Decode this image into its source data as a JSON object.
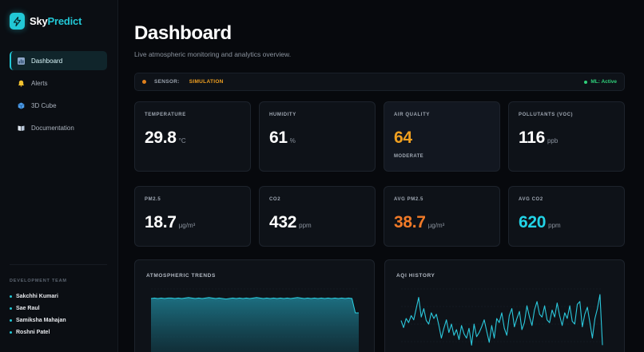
{
  "brand": {
    "name_a": "Sky",
    "name_b": "Predict",
    "logo_icon": "lightning-icon",
    "accent": "#22c8d6"
  },
  "sidebar": {
    "items": [
      {
        "label": "Dashboard",
        "icon": "chart-icon",
        "active": true
      },
      {
        "label": "Alerts",
        "icon": "bell-icon",
        "active": false
      },
      {
        "label": "3D Cube",
        "icon": "cube-icon",
        "active": false
      },
      {
        "label": "Documentation",
        "icon": "book-icon",
        "active": false
      }
    ],
    "team": {
      "title": "DEVELOPMENT TEAM",
      "members": [
        "Sakchhi Kumari",
        "Sae Raul",
        "Samiksha Mahajan",
        "Roshni Patel"
      ]
    }
  },
  "header": {
    "title": "Dashboard",
    "subtitle": "Live atmospheric monitoring and analytics overview."
  },
  "sensor": {
    "label": "SENSOR:",
    "value": "SIMULATION",
    "ml_status": "ML: Active"
  },
  "metrics": [
    {
      "label": "TEMPERATURE",
      "value": "29.8",
      "unit": "°C",
      "note": "",
      "color": "#ffffff"
    },
    {
      "label": "HUMIDITY",
      "value": "61",
      "unit": "%",
      "note": "",
      "color": "#ffffff"
    },
    {
      "label": "AIR QUALITY",
      "value": "64",
      "unit": "",
      "note": "MODERATE",
      "color": "#f0a020"
    },
    {
      "label": "POLLUTANTS (VOC)",
      "value": "116",
      "unit": "ppb",
      "note": "",
      "color": "#ffffff"
    },
    {
      "label": "PM2.5",
      "value": "18.7",
      "unit": "µg/m³",
      "note": "",
      "color": "#ffffff"
    },
    {
      "label": "CO2",
      "value": "432",
      "unit": "ppm",
      "note": "",
      "color": "#ffffff"
    },
    {
      "label": "AVG PM2.5",
      "value": "38.7",
      "unit": "µg/m³",
      "note": "",
      "color": "#f07a28"
    },
    {
      "label": "AVG CO2",
      "value": "620",
      "unit": "ppm",
      "note": "",
      "color": "#22d3e6"
    }
  ],
  "panels": {
    "trends_title": "ATMOSPHERIC TRENDS",
    "aqi_title": "AQI HISTORY"
  },
  "chart_data": [
    {
      "type": "area",
      "title": "ATMOSPHERIC TRENDS",
      "xlabel": "",
      "ylabel": "",
      "ylim": [
        0,
        100
      ],
      "grid": true,
      "series": [
        {
          "values": [
            80,
            81,
            80,
            81,
            80,
            81,
            81,
            80,
            81,
            80,
            81,
            82,
            81,
            80,
            81,
            80,
            81,
            82,
            81,
            80,
            81,
            80,
            79,
            80,
            81,
            80,
            81,
            80,
            81,
            80,
            81,
            82,
            81,
            80,
            81,
            80,
            81,
            80,
            81,
            80,
            81,
            80,
            81,
            82,
            81,
            80,
            81,
            80,
            81,
            80,
            81,
            80,
            81,
            80,
            81,
            80,
            81,
            80,
            81,
            80,
            50,
            50
          ]
        }
      ]
    },
    {
      "type": "line",
      "title": "AQI HISTORY",
      "xlabel": "",
      "ylabel": "",
      "ylim": [
        0,
        100
      ],
      "grid": true,
      "series": [
        {
          "values": [
            55,
            45,
            58,
            52,
            62,
            56,
            72,
            88,
            60,
            72,
            55,
            50,
            66,
            58,
            64,
            48,
            30,
            44,
            56,
            38,
            50,
            34,
            42,
            28,
            48,
            36,
            30,
            44,
            20,
            50,
            32,
            38,
            46,
            56,
            40,
            24,
            48,
            30,
            58,
            52,
            66,
            44,
            34,
            62,
            72,
            46,
            58,
            68,
            42,
            52,
            76,
            60,
            48,
            70,
            82,
            64,
            60,
            76,
            56,
            52,
            70,
            60,
            80,
            62,
            48,
            66,
            58,
            76,
            54,
            50,
            78,
            82,
            46,
            64,
            74,
            52,
            30,
            58,
            72,
            92,
            20
          ]
        }
      ]
    }
  ]
}
